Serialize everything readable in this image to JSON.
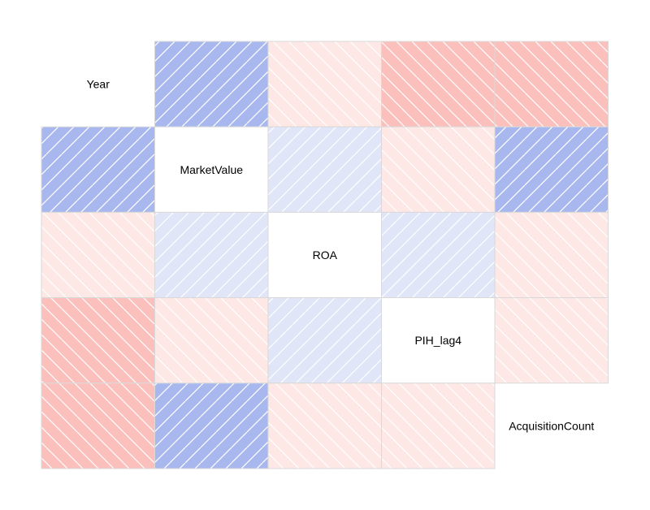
{
  "chart_data": {
    "type": "heatmap",
    "variables": [
      "Year",
      "MarketValue",
      "ROA",
      "PIH_lag4",
      "AcquisitionCount"
    ],
    "matrix": [
      [
        1,
        -0.6,
        0.1,
        0.4,
        0.4
      ],
      [
        -0.6,
        1,
        -0.2,
        0.1,
        -0.6
      ],
      [
        0.1,
        -0.2,
        1,
        -0.2,
        0.1
      ],
      [
        0.4,
        0.1,
        -0.2,
        1,
        0.1
      ],
      [
        0.4,
        -0.6,
        0.1,
        0.1,
        1
      ]
    ],
    "hidden_cells": [
      [
        0,
        0
      ],
      [
        1,
        1
      ],
      [
        2,
        2
      ],
      [
        3,
        3
      ],
      [
        4,
        4
      ]
    ],
    "range": [
      -1,
      1
    ],
    "title": "",
    "xlabel": "",
    "ylabel": ""
  },
  "colors": {
    "negative_strong": "#a8b8ee",
    "negative_weak": "#e0e5f8",
    "positive_strong": "#fcc0bc",
    "positive_weak": "#fde8e6",
    "hatch": "#ffffff",
    "cell_border": "#d9d9d9",
    "diagonal_fill": "#ffffff"
  }
}
